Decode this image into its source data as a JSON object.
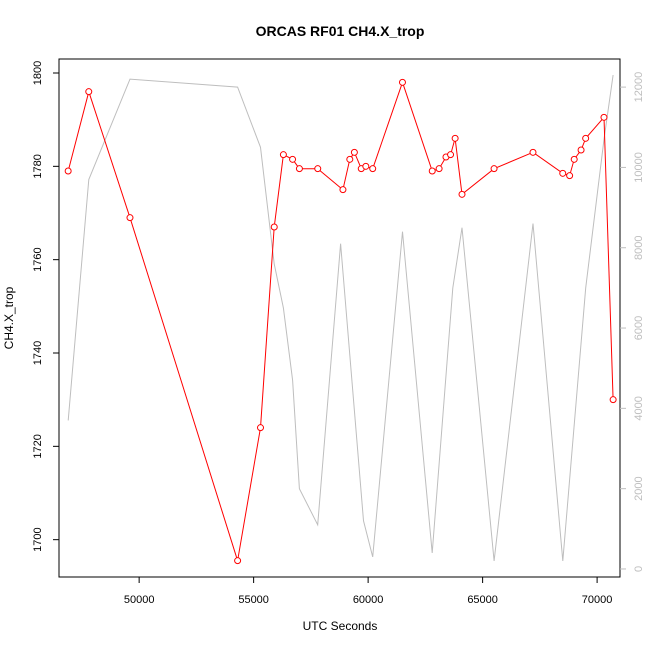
{
  "chart_data": {
    "type": "line",
    "title": "ORCAS RF01 CH4.X_trop",
    "xlabel": "UTC Seconds",
    "ylabel": "CH4.X_trop",
    "xlim": [
      46500,
      71000
    ],
    "ylim": [
      1692,
      1803
    ],
    "y2lim": [
      -200,
      12700
    ],
    "x_ticks": [
      50000,
      55000,
      60000,
      65000,
      70000
    ],
    "y_ticks": [
      1700,
      1720,
      1740,
      1760,
      1780,
      1800
    ],
    "y2_ticks": [
      0,
      2000,
      4000,
      6000,
      8000,
      10000,
      12000
    ],
    "colors": {
      "primary": "#ff0000",
      "secondary": "#bebebe"
    },
    "series": [
      {
        "axis": "left",
        "style": "line-with-open-circles",
        "x": [
          46900,
          47800,
          49600,
          54300,
          55300,
          55900,
          56300,
          56700,
          57000,
          57800,
          58900,
          59200,
          59400,
          59700,
          59900,
          60200,
          61500,
          62800,
          63100,
          63400,
          63600,
          63800,
          64100,
          65500,
          67200,
          68500,
          68800,
          69000,
          69300,
          69500,
          70300,
          70700
        ],
        "y": [
          1779,
          1796,
          1769,
          1695.5,
          1724,
          1767,
          1782.5,
          1781.5,
          1779.5,
          1779.5,
          1775,
          1781.5,
          1783,
          1779.5,
          1780,
          1779.5,
          1798,
          1779,
          1779.5,
          1782,
          1782.5,
          1786,
          1774,
          1779.5,
          1783,
          1778.5,
          1778,
          1781.5,
          1783.5,
          1786,
          1790.5,
          1730
        ]
      },
      {
        "axis": "right",
        "style": "line",
        "x": [
          46900,
          47800,
          49600,
          54300,
          55300,
          55900,
          56300,
          56700,
          57000,
          57800,
          58800,
          59800,
          60200,
          61500,
          62800,
          63700,
          64100,
          65500,
          67200,
          68500,
          69500,
          70300,
          70700
        ],
        "y": [
          3700,
          9700,
          12200,
          12000,
          10500,
          7600,
          6500,
          4700,
          2000,
          1100,
          8100,
          1200,
          300,
          8400,
          400,
          7000,
          8500,
          200,
          8600,
          200,
          7000,
          10700,
          12300
        ]
      }
    ]
  }
}
